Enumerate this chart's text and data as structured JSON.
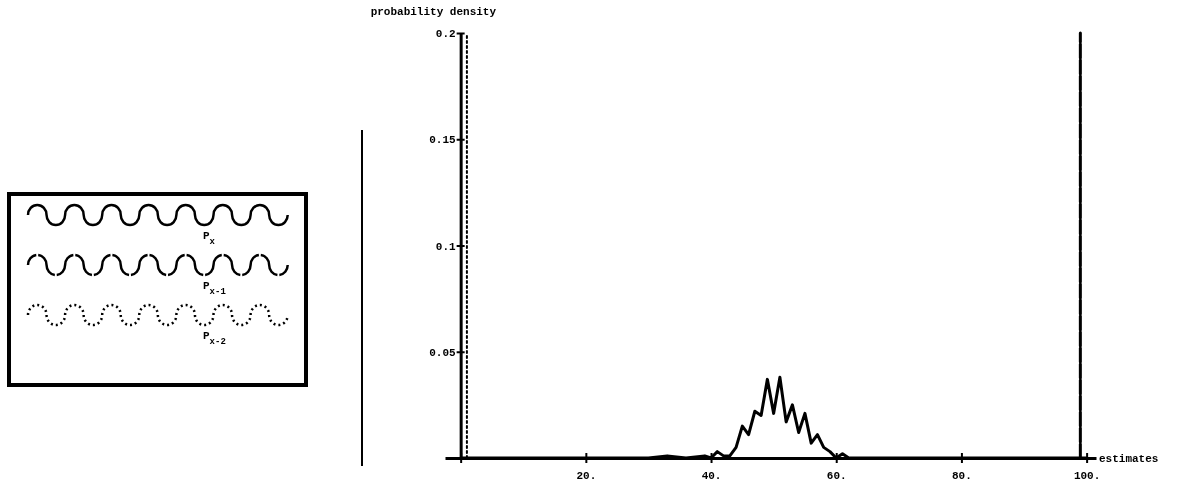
{
  "chart_data": {
    "type": "line",
    "xlabel": "estimates",
    "ylabel": "probability density",
    "xlim": [
      -2.5,
      101.5
    ],
    "ylim": [
      0,
      0.2
    ],
    "xticks": [
      {
        "value": 0,
        "label": null
      },
      {
        "value": 20,
        "label": "20."
      },
      {
        "value": 40,
        "label": "40."
      },
      {
        "value": 60,
        "label": "60."
      },
      {
        "value": 80,
        "label": "80."
      },
      {
        "value": 100,
        "label": "100."
      }
    ],
    "yticks": [
      {
        "value": 0,
        "label": null
      },
      0.05,
      0.1,
      0.15,
      0.2
    ],
    "legend": "left",
    "grid": false,
    "series": [
      {
        "name": "P$_{x}$",
        "color": "#000000",
        "line_style": "solid",
        "x": [
          0,
          30,
          33,
          36,
          39,
          40,
          41,
          42,
          43,
          44,
          45,
          46,
          47,
          48,
          49,
          50,
          51,
          52,
          53,
          54,
          55,
          56,
          57,
          58,
          59,
          60,
          61,
          62,
          70,
          100
        ],
        "values": [
          0,
          0,
          0.001,
          0,
          0.001,
          0,
          0.003,
          0.001,
          0.001,
          0.005,
          0.015,
          0.011,
          0.022,
          0.02,
          0.037,
          0.021,
          0.038,
          0.017,
          0.025,
          0.012,
          0.021,
          0.007,
          0.011,
          0.005,
          0.003,
          0,
          0.002,
          0,
          0,
          0
        ]
      },
      {
        "name": "P$_{x-1}$",
        "color": "#000000",
        "line_style": "dashed",
        "x": [
          99,
          99
        ],
        "values": [
          0,
          0.2
        ]
      },
      {
        "name": "P$_{x-2}$",
        "color": "#000000",
        "line_style": "dotted",
        "x": [
          1,
          1
        ],
        "values": [
          0,
          0.2
        ]
      }
    ]
  }
}
